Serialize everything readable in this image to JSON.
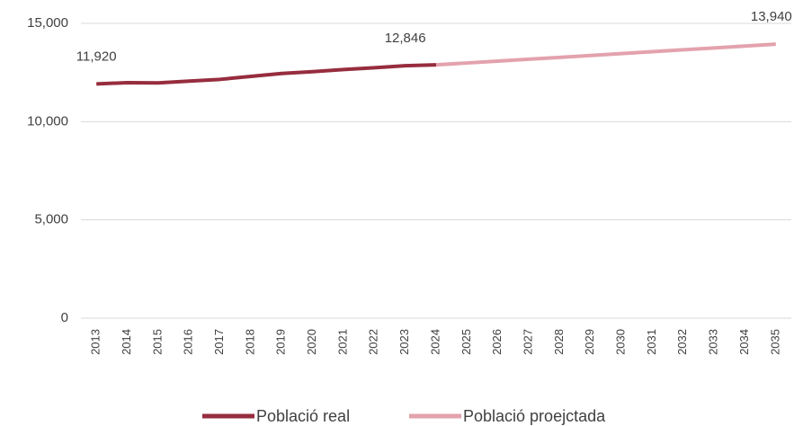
{
  "chart_data": {
    "type": "line",
    "categories": [
      "2013",
      "2014",
      "2015",
      "2016",
      "2017",
      "2018",
      "2019",
      "2020",
      "2021",
      "2022",
      "2023",
      "2024",
      "2025",
      "2026",
      "2027",
      "2028",
      "2029",
      "2030",
      "2031",
      "2032",
      "2033",
      "2034",
      "2035"
    ],
    "series": [
      {
        "name": "Població real",
        "color": "#962d3e",
        "values": [
          11920,
          11980,
          11970,
          12060,
          12150,
          12300,
          12450,
          12540,
          12650,
          12740,
          12846,
          12890,
          null,
          null,
          null,
          null,
          null,
          null,
          null,
          null,
          null,
          null,
          null
        ],
        "value_labels": [
          "11,920",
          null,
          null,
          null,
          null,
          null,
          null,
          null,
          null,
          null,
          "12,846",
          null,
          null,
          null,
          null,
          null,
          null,
          null,
          null,
          null,
          null,
          null,
          null
        ]
      },
      {
        "name": "Població proejctada",
        "color": "#e3a2ad",
        "values": [
          null,
          null,
          null,
          null,
          null,
          null,
          null,
          null,
          null,
          null,
          null,
          12890,
          12985,
          13080,
          13175,
          13270,
          13365,
          13460,
          13560,
          13655,
          13750,
          13845,
          13940
        ],
        "value_labels": [
          null,
          null,
          null,
          null,
          null,
          null,
          null,
          null,
          null,
          null,
          null,
          null,
          null,
          null,
          null,
          null,
          null,
          null,
          null,
          null,
          null,
          null,
          "13,940"
        ]
      }
    ],
    "ylim": [
      0,
      15000
    ],
    "yticks": [
      0,
      {
        "value": 5000,
        "label": "5,000"
      },
      {
        "value": 10000,
        "label": "10,000"
      },
      {
        "value": 15000,
        "label": "15,000"
      }
    ],
    "grid": true,
    "legend": "bottom"
  }
}
